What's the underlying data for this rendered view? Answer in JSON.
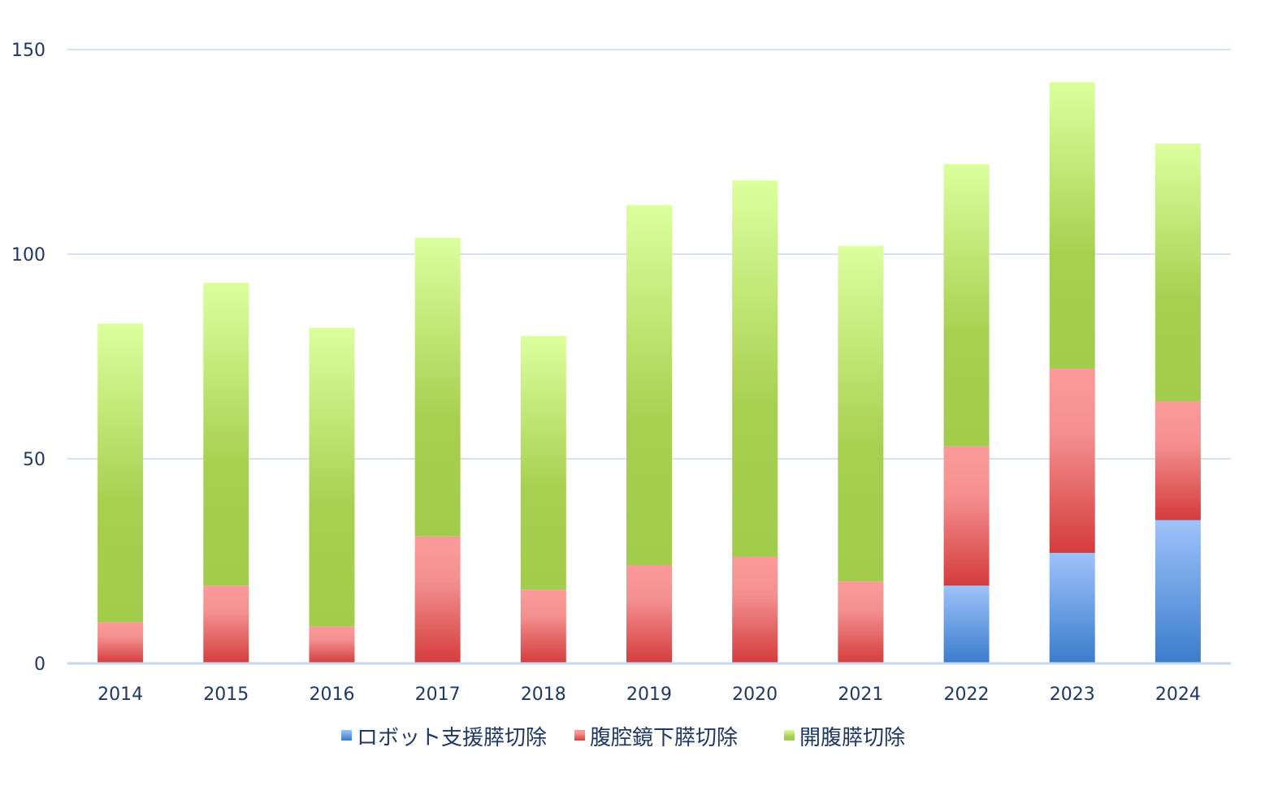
{
  "chart_data": {
    "type": "bar",
    "stacked": true,
    "categories": [
      "2014",
      "2015",
      "2016",
      "2017",
      "2018",
      "2019",
      "2020",
      "2021",
      "2022",
      "2023",
      "2024"
    ],
    "series": [
      {
        "name": "ロボット支援膵切除",
        "color": "#4a86d4",
        "values": [
          0,
          0,
          0,
          0,
          0,
          0,
          0,
          0,
          19,
          27,
          35
        ]
      },
      {
        "name": "腹腔鏡下膵切除",
        "color": "#e04848",
        "values": [
          10,
          19,
          9,
          31,
          18,
          24,
          26,
          20,
          34,
          45,
          29
        ]
      },
      {
        "name": "開腹膵切除",
        "color": "#a8d050",
        "values": [
          73,
          74,
          73,
          73,
          62,
          88,
          92,
          82,
          69,
          70,
          63
        ]
      }
    ],
    "ylim": [
      0,
      150
    ],
    "yticks": [
      0,
      50,
      100,
      150
    ],
    "grid": true,
    "legend": "bottom"
  }
}
